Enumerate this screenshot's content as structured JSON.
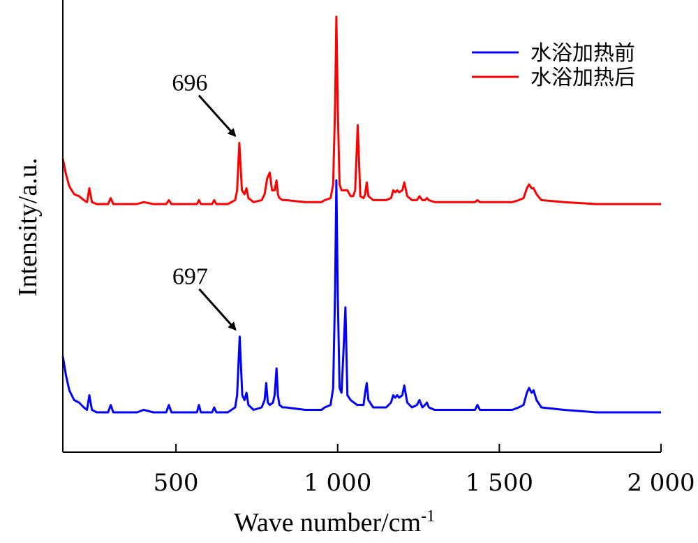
{
  "chart_data": {
    "type": "line",
    "xlabel": "Wave number/cm",
    "xlabel_sup": "-1",
    "ylabel": "Intensity/a.u.",
    "xlim": [
      150,
      2000
    ],
    "ylim": [
      0,
      1.16
    ],
    "xticks": [
      500,
      1000,
      1500,
      2000
    ],
    "xtick_labels": [
      "500",
      "1 000",
      "1 500",
      "2 000"
    ],
    "yticks_shown": false,
    "grid": false,
    "legend_position": "top-right",
    "series": [
      {
        "name": "水浴加热前",
        "color": "#0000ff",
        "baseline": 0.05,
        "x": [
          150,
          160,
          170,
          185,
          200,
          215,
          225,
          232,
          240,
          255,
          290,
          298,
          306,
          315,
          340,
          380,
          400,
          430,
          470,
          478,
          486,
          495,
          540,
          565,
          571,
          577,
          600,
          612,
          618,
          625,
          660,
          683,
          689,
          697,
          705,
          712,
          718,
          724,
          740,
          765,
          774,
          779,
          784,
          790,
          800,
          805,
          811,
          815,
          820,
          830,
          840,
          900,
          950,
          960,
          978,
          986,
          992,
          996,
          1000,
          1006,
          1012,
          1018,
          1024,
          1030,
          1040,
          1060,
          1080,
          1085,
          1090,
          1095,
          1110,
          1150,
          1165,
          1172,
          1178,
          1184,
          1190,
          1200,
          1206,
          1215,
          1230,
          1245,
          1253,
          1262,
          1270,
          1276,
          1282,
          1300,
          1400,
          1425,
          1432,
          1440,
          1480,
          1500,
          1540,
          1560,
          1575,
          1585,
          1592,
          1600,
          1606,
          1615,
          1630,
          1700,
          1800,
          2000
        ],
        "y": [
          0.28,
          0.2,
          0.14,
          0.1,
          0.09,
          0.07,
          0.06,
          0.12,
          0.06,
          0.05,
          0.05,
          0.08,
          0.05,
          0.05,
          0.05,
          0.05,
          0.06,
          0.05,
          0.05,
          0.08,
          0.05,
          0.05,
          0.05,
          0.05,
          0.08,
          0.05,
          0.05,
          0.05,
          0.07,
          0.05,
          0.05,
          0.07,
          0.12,
          0.36,
          0.12,
          0.1,
          0.13,
          0.08,
          0.06,
          0.07,
          0.1,
          0.17,
          0.09,
          0.08,
          0.09,
          0.12,
          0.23,
          0.12,
          0.08,
          0.07,
          0.07,
          0.06,
          0.06,
          0.07,
          0.08,
          0.15,
          0.55,
          1.0,
          0.55,
          0.15,
          0.13,
          0.3,
          0.48,
          0.12,
          0.1,
          0.08,
          0.08,
          0.13,
          0.17,
          0.1,
          0.07,
          0.07,
          0.09,
          0.12,
          0.11,
          0.12,
          0.11,
          0.12,
          0.16,
          0.09,
          0.07,
          0.08,
          0.1,
          0.07,
          0.08,
          0.09,
          0.07,
          0.06,
          0.06,
          0.06,
          0.08,
          0.06,
          0.06,
          0.06,
          0.06,
          0.07,
          0.08,
          0.13,
          0.15,
          0.13,
          0.14,
          0.1,
          0.07,
          0.06,
          0.05,
          0.05
        ]
      },
      {
        "name": "水浴加热后",
        "color": "#ff0000",
        "baseline": 0.05,
        "x": [
          150,
          160,
          170,
          185,
          200,
          215,
          225,
          232,
          240,
          255,
          290,
          298,
          306,
          315,
          340,
          380,
          400,
          430,
          470,
          478,
          486,
          495,
          540,
          565,
          571,
          577,
          600,
          612,
          618,
          625,
          660,
          683,
          689,
          696,
          704,
          712,
          718,
          724,
          740,
          765,
          774,
          782,
          790,
          797,
          805,
          811,
          815,
          820,
          830,
          840,
          900,
          950,
          960,
          978,
          986,
          992,
          996,
          1000,
          1006,
          1012,
          1020,
          1030,
          1040,
          1048,
          1054,
          1062,
          1070,
          1080,
          1085,
          1090,
          1095,
          1110,
          1150,
          1165,
          1172,
          1178,
          1184,
          1190,
          1200,
          1206,
          1215,
          1230,
          1245,
          1253,
          1262,
          1270,
          1276,
          1282,
          1300,
          1400,
          1425,
          1432,
          1440,
          1480,
          1500,
          1540,
          1560,
          1575,
          1585,
          1592,
          1600,
          1606,
          1615,
          1630,
          1700,
          1800,
          2000
        ],
        "y": [
          0.28,
          0.2,
          0.14,
          0.1,
          0.09,
          0.07,
          0.06,
          0.13,
          0.06,
          0.05,
          0.05,
          0.08,
          0.05,
          0.05,
          0.05,
          0.05,
          0.06,
          0.05,
          0.05,
          0.07,
          0.05,
          0.05,
          0.05,
          0.05,
          0.07,
          0.05,
          0.05,
          0.05,
          0.07,
          0.05,
          0.05,
          0.07,
          0.12,
          0.36,
          0.12,
          0.1,
          0.13,
          0.08,
          0.06,
          0.07,
          0.1,
          0.18,
          0.21,
          0.12,
          0.12,
          0.17,
          0.1,
          0.08,
          0.07,
          0.07,
          0.06,
          0.06,
          0.07,
          0.08,
          0.15,
          0.55,
          1.0,
          0.55,
          0.15,
          0.12,
          0.12,
          0.12,
          0.09,
          0.09,
          0.12,
          0.45,
          0.09,
          0.08,
          0.1,
          0.16,
          0.09,
          0.07,
          0.07,
          0.08,
          0.12,
          0.11,
          0.12,
          0.11,
          0.12,
          0.16,
          0.09,
          0.07,
          0.07,
          0.09,
          0.07,
          0.07,
          0.08,
          0.07,
          0.06,
          0.06,
          0.06,
          0.07,
          0.06,
          0.06,
          0.06,
          0.06,
          0.07,
          0.08,
          0.13,
          0.15,
          0.13,
          0.13,
          0.1,
          0.07,
          0.06,
          0.05,
          0.05
        ]
      }
    ],
    "annotations": [
      {
        "text": "696",
        "x": 696,
        "series": 1
      },
      {
        "text": "697",
        "x": 697,
        "series": 0
      }
    ]
  }
}
